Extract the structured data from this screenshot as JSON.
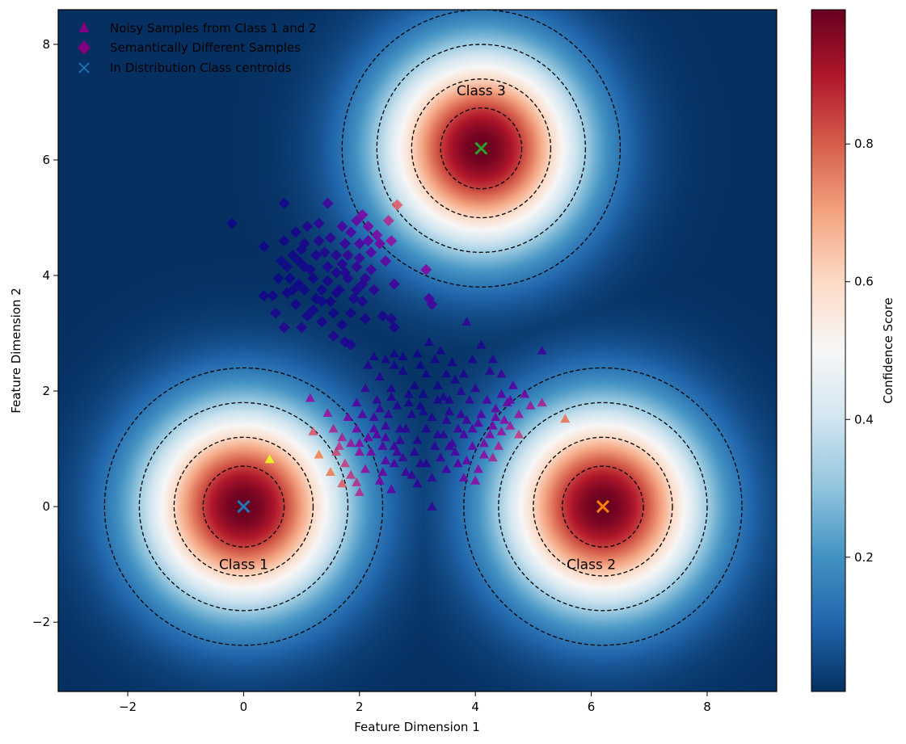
{
  "chart_data": {
    "type": "scatter",
    "xlabel": "Feature Dimension 1",
    "ylabel": "Feature Dimension 2",
    "xlim": [
      -3.2,
      9.2
    ],
    "ylim": [
      -3.2,
      8.6
    ],
    "x_ticks": [
      -2,
      0,
      2,
      4,
      6,
      8
    ],
    "y_ticks": [
      -2,
      0,
      2,
      4,
      6,
      8
    ],
    "x_tick_labels": [
      "−2",
      "0",
      "2",
      "4",
      "6",
      "8"
    ],
    "y_tick_labels": [
      "−2",
      "0",
      "2",
      "4",
      "6",
      "8"
    ],
    "grid": false,
    "legend_position": "top-left",
    "background": "confidence heatmap (max over classes of exp(-d^2/(2*1.44)))",
    "colorbar": {
      "label": "Confidence Score",
      "colormap": "RdBu_r",
      "range": [
        0,
        1
      ],
      "ticks": [
        0.2,
        0.4,
        0.6,
        0.8
      ],
      "tick_labels": [
        "0.2",
        "0.4",
        "0.6",
        "0.8"
      ]
    },
    "classes": [
      {
        "label": "Class 1",
        "x": 0.0,
        "y": 0.0,
        "marker_color": "#1f77b4",
        "label_x": 0.0,
        "label_y": -1.0
      },
      {
        "label": "Class 2",
        "x": 6.2,
        "y": 0.0,
        "marker_color": "#ff7f0e",
        "label_x": 6.0,
        "label_y": -1.0
      },
      {
        "label": "Class 3",
        "x": 4.1,
        "y": 6.2,
        "marker_color": "#2ca02c",
        "label_x": 4.1,
        "label_y": 7.2
      }
    ],
    "contour_radii": [
      0.7,
      1.2,
      1.8,
      2.4
    ],
    "series": [
      {
        "name": "Noisy Samples from Class 1 and 2",
        "marker": "triangle",
        "legend_color": "#800080",
        "points": [
          [
            0.45,
            0.82
          ],
          [
            5.55,
            1.52
          ],
          [
            1.15,
            1.88
          ],
          [
            1.45,
            1.62
          ],
          [
            1.55,
            1.35
          ],
          [
            1.7,
            1.2
          ],
          [
            1.6,
            0.95
          ],
          [
            1.75,
            0.75
          ],
          [
            1.85,
            0.55
          ],
          [
            1.95,
            0.42
          ],
          [
            2.1,
            0.65
          ],
          [
            2.2,
            0.95
          ],
          [
            2.0,
            1.1
          ],
          [
            2.3,
            1.25
          ],
          [
            2.45,
            0.8
          ],
          [
            2.55,
            0.3
          ],
          [
            2.25,
            1.55
          ],
          [
            2.45,
            1.4
          ],
          [
            2.6,
            1.05
          ],
          [
            2.75,
            0.85
          ],
          [
            2.9,
            0.55
          ],
          [
            2.8,
            1.35
          ],
          [
            3.0,
            1.15
          ],
          [
            3.15,
            0.75
          ],
          [
            3.25,
            0.5
          ],
          [
            3.5,
            0.65
          ],
          [
            3.65,
            0.95
          ],
          [
            3.45,
            1.25
          ],
          [
            3.25,
            1.55
          ],
          [
            3.05,
            1.75
          ],
          [
            2.85,
            1.95
          ],
          [
            2.65,
            1.75
          ],
          [
            2.55,
            2.05
          ],
          [
            2.35,
            2.25
          ],
          [
            2.15,
            2.45
          ],
          [
            2.45,
            2.55
          ],
          [
            2.75,
            2.35
          ],
          [
            2.95,
            2.1
          ],
          [
            3.15,
            2.3
          ],
          [
            3.35,
            2.1
          ],
          [
            3.55,
            1.85
          ],
          [
            3.75,
            1.6
          ],
          [
            3.95,
            1.35
          ],
          [
            4.15,
            1.1
          ],
          [
            3.85,
            0.8
          ],
          [
            4.05,
            0.65
          ],
          [
            4.3,
            0.85
          ],
          [
            4.45,
            1.3
          ],
          [
            4.35,
            1.55
          ],
          [
            4.2,
            1.85
          ],
          [
            4.0,
            2.05
          ],
          [
            3.8,
            2.3
          ],
          [
            3.6,
            2.5
          ],
          [
            3.4,
            2.7
          ],
          [
            3.2,
            2.85
          ],
          [
            3.0,
            2.65
          ],
          [
            2.75,
            2.6
          ],
          [
            2.6,
            2.45
          ],
          [
            3.85,
            3.2
          ],
          [
            4.1,
            2.8
          ],
          [
            4.3,
            2.55
          ],
          [
            4.45,
            2.3
          ],
          [
            4.65,
            2.1
          ],
          [
            4.85,
            1.95
          ],
          [
            4.55,
            1.8
          ],
          [
            4.75,
            1.6
          ],
          [
            4.95,
            1.75
          ],
          [
            5.15,
            1.8
          ],
          [
            5.15,
            2.7
          ],
          [
            3.25,
            0.0
          ],
          [
            2.6,
            0.75
          ],
          [
            2.35,
            0.45
          ],
          [
            3.45,
            1.9
          ],
          [
            3.65,
            2.2
          ],
          [
            3.95,
            2.55
          ],
          [
            4.25,
            2.35
          ],
          [
            4.45,
            1.95
          ],
          [
            4.1,
            1.6
          ],
          [
            3.9,
            1.85
          ],
          [
            3.7,
            1.35
          ],
          [
            3.5,
            1.5
          ],
          [
            3.35,
            1.85
          ],
          [
            3.1,
            1.95
          ],
          [
            2.9,
            1.6
          ],
          [
            2.7,
            1.35
          ],
          [
            2.5,
            1.6
          ],
          [
            2.3,
            1.85
          ],
          [
            2.1,
            2.05
          ],
          [
            1.95,
            1.8
          ],
          [
            1.8,
            1.55
          ],
          [
            1.95,
            1.35
          ],
          [
            2.15,
            1.2
          ],
          [
            2.4,
            1.05
          ],
          [
            2.65,
            0.95
          ],
          [
            2.95,
            0.95
          ],
          [
            3.3,
            1.05
          ],
          [
            3.6,
            1.1
          ],
          [
            3.8,
            1.25
          ],
          [
            4.05,
            1.45
          ],
          [
            4.25,
            1.25
          ],
          [
            4.4,
            1.05
          ],
          [
            4.15,
            0.9
          ],
          [
            3.95,
            1.05
          ],
          [
            3.4,
            0.85
          ],
          [
            3.05,
            0.75
          ],
          [
            2.8,
            0.6
          ],
          [
            1.5,
            0.6
          ],
          [
            1.3,
            0.9
          ],
          [
            1.2,
            1.3
          ],
          [
            2.0,
            0.25
          ],
          [
            1.7,
            0.4
          ],
          [
            3.8,
            0.5
          ],
          [
            4.0,
            0.45
          ],
          [
            4.6,
            1.4
          ],
          [
            4.75,
            1.25
          ],
          [
            2.25,
            2.6
          ],
          [
            2.6,
            2.65
          ],
          [
            3.05,
            2.45
          ],
          [
            3.3,
            2.55
          ],
          [
            3.5,
            2.3
          ],
          [
            3.75,
            2.0
          ],
          [
            4.35,
            1.7
          ],
          [
            4.6,
            1.85
          ],
          [
            2.05,
            1.6
          ],
          [
            2.25,
            1.35
          ],
          [
            2.45,
            1.2
          ],
          [
            2.7,
            1.15
          ],
          [
            3.15,
            1.35
          ],
          [
            3.35,
            1.25
          ],
          [
            3.55,
            1.05
          ],
          [
            2.85,
            1.8
          ],
          [
            3.1,
            1.65
          ],
          [
            3.55,
            1.65
          ],
          [
            3.85,
            1.5
          ],
          [
            2.55,
            1.9
          ],
          [
            2.35,
            1.7
          ],
          [
            2.0,
            0.95
          ],
          [
            1.85,
            1.1
          ],
          [
            4.5,
            1.5
          ],
          [
            4.3,
            1.4
          ],
          [
            3.7,
            0.75
          ],
          [
            3.0,
            0.4
          ],
          [
            2.4,
            0.6
          ],
          [
            1.65,
            1.05
          ]
        ]
      },
      {
        "name": "Semantically Different Samples",
        "marker": "diamond",
        "legend_color": "#800080",
        "points": [
          [
            2.65,
            5.22
          ],
          [
            2.5,
            4.95
          ],
          [
            2.55,
            4.6
          ],
          [
            2.3,
            4.7
          ],
          [
            2.15,
            4.85
          ],
          [
            2.05,
            5.05
          ],
          [
            1.95,
            4.95
          ],
          [
            1.85,
            4.75
          ],
          [
            2.0,
            4.55
          ],
          [
            2.2,
            4.4
          ],
          [
            2.45,
            4.25
          ],
          [
            2.6,
            3.85
          ],
          [
            3.15,
            4.1
          ],
          [
            3.25,
            3.5
          ],
          [
            3.2,
            3.6
          ],
          [
            1.75,
            4.55
          ],
          [
            1.6,
            4.35
          ],
          [
            1.45,
            4.15
          ],
          [
            1.25,
            4.35
          ],
          [
            1.05,
            4.55
          ],
          [
            0.85,
            4.35
          ],
          [
            0.75,
            4.15
          ],
          [
            0.6,
            3.95
          ],
          [
            0.75,
            3.7
          ],
          [
            0.9,
            3.5
          ],
          [
            1.05,
            3.75
          ],
          [
            1.2,
            3.95
          ],
          [
            1.35,
            3.75
          ],
          [
            1.5,
            3.55
          ],
          [
            1.65,
            3.75
          ],
          [
            1.8,
            3.95
          ],
          [
            1.95,
            4.15
          ],
          [
            2.1,
            3.95
          ],
          [
            2.25,
            3.75
          ],
          [
            2.05,
            3.55
          ],
          [
            1.85,
            3.35
          ],
          [
            1.7,
            3.15
          ],
          [
            1.55,
            2.95
          ],
          [
            1.35,
            3.2
          ],
          [
            1.2,
            3.4
          ],
          [
            1.0,
            3.1
          ],
          [
            0.7,
            3.1
          ],
          [
            0.55,
            3.35
          ],
          [
            0.35,
            3.65
          ],
          [
            0.35,
            4.5
          ],
          [
            0.7,
            4.6
          ],
          [
            0.9,
            4.75
          ],
          [
            1.1,
            4.85
          ],
          [
            1.3,
            4.9
          ],
          [
            1.5,
            4.65
          ],
          [
            1.7,
            4.85
          ],
          [
            1.45,
            5.25
          ],
          [
            0.7,
            5.25
          ],
          [
            -0.2,
            4.9
          ],
          [
            0.5,
            3.65
          ],
          [
            1.05,
            4.15
          ],
          [
            1.25,
            3.6
          ],
          [
            1.45,
            3.9
          ],
          [
            1.6,
            4.05
          ],
          [
            1.8,
            4.35
          ],
          [
            1.95,
            3.75
          ],
          [
            2.1,
            3.25
          ],
          [
            1.85,
            2.8
          ],
          [
            1.75,
            2.85
          ],
          [
            2.4,
            3.3
          ],
          [
            2.6,
            3.1
          ],
          [
            2.55,
            3.25
          ],
          [
            0.95,
            3.85
          ],
          [
            0.8,
            3.95
          ],
          [
            0.65,
            4.25
          ],
          [
            1.1,
            3.3
          ],
          [
            1.35,
            3.55
          ],
          [
            1.55,
            3.35
          ],
          [
            2.2,
            4.1
          ],
          [
            2.35,
            4.55
          ],
          [
            2.0,
            4.3
          ],
          [
            1.7,
            4.2
          ],
          [
            1.4,
            4.4
          ],
          [
            1.15,
            4.1
          ],
          [
            0.95,
            4.25
          ],
          [
            0.85,
            3.75
          ],
          [
            1.6,
            3.7
          ],
          [
            1.9,
            3.6
          ],
          [
            2.05,
            3.85
          ],
          [
            1.3,
            4.6
          ],
          [
            1.0,
            4.45
          ],
          [
            1.75,
            4.05
          ],
          [
            2.15,
            4.6
          ]
        ]
      },
      {
        "name": "In Distribution Class centroids",
        "marker": "x",
        "legend_color": "#1f77b4",
        "points": [
          [
            0.0,
            0.0
          ],
          [
            6.2,
            0.0
          ],
          [
            4.1,
            6.2
          ]
        ]
      }
    ]
  }
}
